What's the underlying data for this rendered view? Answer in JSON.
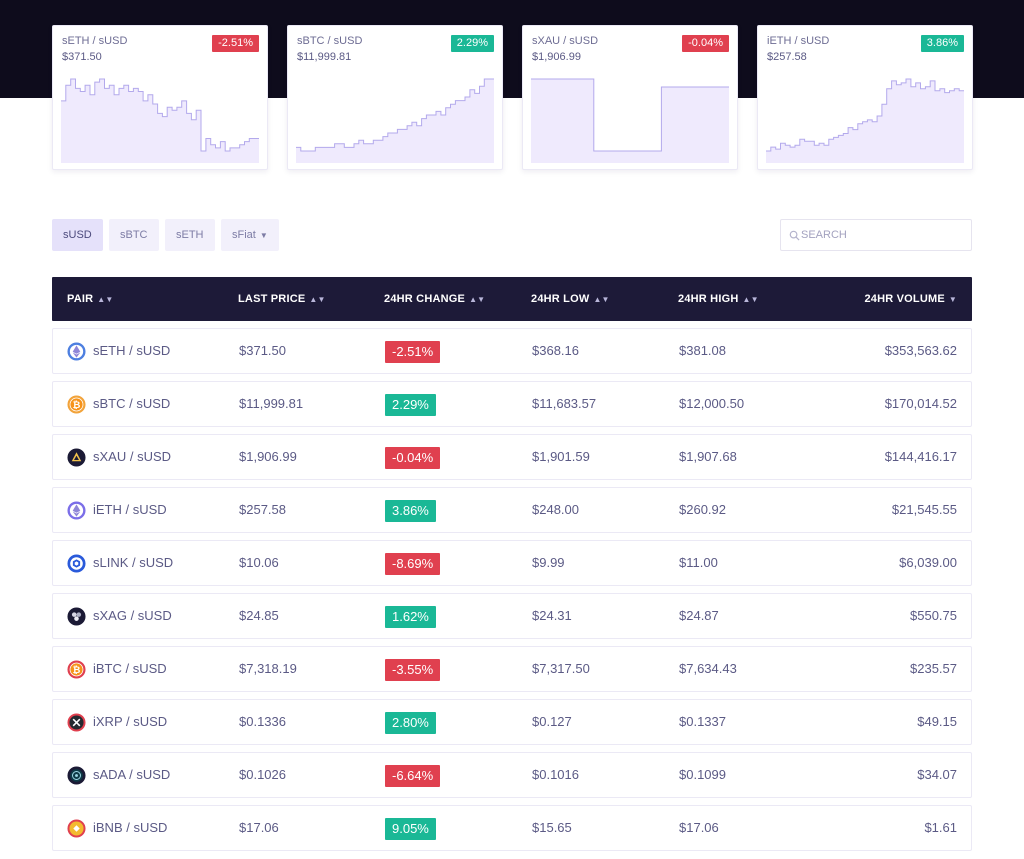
{
  "colors": {
    "header_bg": "#0e0c1c",
    "table_header_bg": "#1d1a38",
    "negative": "#e0404f",
    "positive": "#1ab896",
    "chart_line": "#b3a9ec",
    "chart_fill": "#efeafd"
  },
  "cards": [
    {
      "pair": "sETH / sUSD",
      "price": "$371.50",
      "change": "-2.51%",
      "trend": "negative",
      "spark": [
        88,
        93,
        95,
        92,
        91,
        93,
        90,
        94,
        95,
        92,
        93,
        90,
        92,
        93,
        91,
        92,
        91,
        88,
        90,
        87,
        84,
        83,
        86,
        85,
        86,
        88,
        84,
        82,
        85,
        72,
        76,
        74,
        73,
        75,
        72,
        73,
        73,
        74,
        75,
        76,
        76
      ]
    },
    {
      "pair": "sBTC / sUSD",
      "price": "$11,999.81",
      "change": "2.29%",
      "trend": "positive",
      "spark": [
        61,
        60,
        60,
        60,
        61,
        61,
        61,
        61,
        62,
        62,
        61,
        61,
        62,
        63,
        62,
        62,
        63,
        63,
        64,
        65,
        65,
        66,
        66,
        67,
        68,
        67,
        69,
        70,
        70,
        71,
        70,
        72,
        73,
        74,
        74,
        75,
        77,
        76,
        78,
        80,
        80
      ]
    },
    {
      "pair": "sXAU / sUSD",
      "price": "$1,906.99",
      "change": "-0.04%",
      "trend": "negative",
      "spark": [
        1912,
        1912,
        1912,
        1912,
        1912,
        1912,
        1912,
        1912,
        1912,
        1912,
        1912,
        1912,
        1912,
        1885,
        1885,
        1885,
        1885,
        1885,
        1885,
        1885,
        1885,
        1885,
        1885,
        1885,
        1885,
        1885,
        1885,
        1909,
        1909,
        1909,
        1909,
        1909,
        1909,
        1909,
        1909,
        1909,
        1909,
        1909,
        1909,
        1909,
        1909
      ]
    },
    {
      "pair": "iETH / sUSD",
      "price": "$257.58",
      "change": "3.86%",
      "trend": "positive",
      "spark": [
        230,
        232,
        231,
        234,
        233,
        232,
        233,
        236,
        235,
        235,
        233,
        234,
        233,
        236,
        237,
        238,
        239,
        242,
        241,
        244,
        245,
        246,
        245,
        248,
        254,
        262,
        266,
        264,
        265,
        267,
        263,
        265,
        262,
        263,
        266,
        261,
        262,
        260,
        261,
        262,
        261
      ]
    }
  ],
  "filters": [
    {
      "label": "sUSD",
      "active": true
    },
    {
      "label": "sBTC",
      "active": false
    },
    {
      "label": "sETH",
      "active": false
    },
    {
      "label": "sFiat",
      "active": false,
      "dropdown": true
    }
  ],
  "search": {
    "placeholder": "SEARCH",
    "value": ""
  },
  "table": {
    "headers": {
      "pair": "PAIR",
      "last_price": "LAST PRICE",
      "change_24h": "24HR CHANGE",
      "low_24h": "24HR LOW",
      "high_24h": "24HR HIGH",
      "volume_24h": "24HR VOLUME"
    },
    "rows": [
      {
        "pair": "sETH / sUSD",
        "icon": "ethereum-icon",
        "last_price": "$371.50",
        "change": "-2.51%",
        "trend": "negative",
        "low": "$368.16",
        "high": "$381.08",
        "volume": "$353,563.62"
      },
      {
        "pair": "sBTC / sUSD",
        "icon": "bitcoin-icon",
        "last_price": "$11,999.81",
        "change": "2.29%",
        "trend": "positive",
        "low": "$11,683.57",
        "high": "$12,000.50",
        "volume": "$170,014.52"
      },
      {
        "pair": "sXAU / sUSD",
        "icon": "gold-icon",
        "last_price": "$1,906.99",
        "change": "-0.04%",
        "trend": "negative",
        "low": "$1,901.59",
        "high": "$1,907.68",
        "volume": "$144,416.17"
      },
      {
        "pair": "iETH / sUSD",
        "icon": "ethereum-icon",
        "last_price": "$257.58",
        "change": "3.86%",
        "trend": "positive",
        "low": "$248.00",
        "high": "$260.92",
        "volume": "$21,545.55"
      },
      {
        "pair": "sLINK / sUSD",
        "icon": "chainlink-icon",
        "last_price": "$10.06",
        "change": "-8.69%",
        "trend": "negative",
        "low": "$9.99",
        "high": "$11.00",
        "volume": "$6,039.00"
      },
      {
        "pair": "sXAG / sUSD",
        "icon": "silver-icon",
        "last_price": "$24.85",
        "change": "1.62%",
        "trend": "positive",
        "low": "$24.31",
        "high": "$24.87",
        "volume": "$550.75"
      },
      {
        "pair": "iBTC / sUSD",
        "icon": "bitcoin-icon",
        "last_price": "$7,318.19",
        "change": "-3.55%",
        "trend": "negative",
        "low": "$7,317.50",
        "high": "$7,634.43",
        "volume": "$235.57"
      },
      {
        "pair": "iXRP / sUSD",
        "icon": "xrp-icon",
        "last_price": "$0.1336",
        "change": "2.80%",
        "trend": "positive",
        "low": "$0.127",
        "high": "$0.1337",
        "volume": "$49.15"
      },
      {
        "pair": "sADA / sUSD",
        "icon": "cardano-icon",
        "last_price": "$0.1026",
        "change": "-6.64%",
        "trend": "negative",
        "low": "$0.1016",
        "high": "$0.1099",
        "volume": "$34.07"
      },
      {
        "pair": "iBNB / sUSD",
        "icon": "binance-icon",
        "last_price": "$17.06",
        "change": "9.05%",
        "trend": "positive",
        "low": "$15.65",
        "high": "$17.06",
        "volume": "$1.61"
      }
    ]
  }
}
